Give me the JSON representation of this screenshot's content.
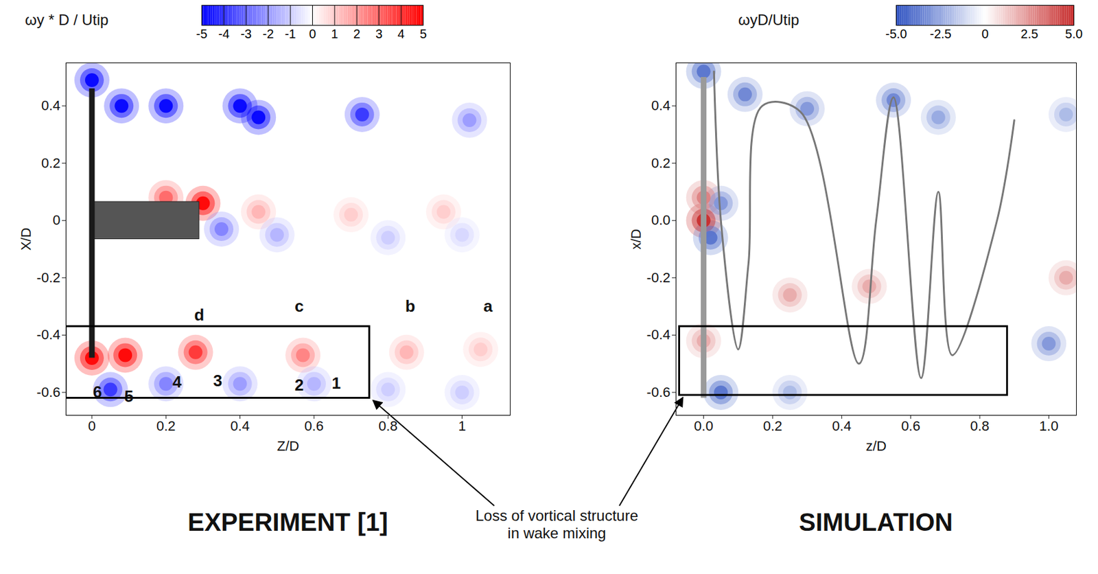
{
  "chart_data": [
    {
      "type": "vortex_map",
      "title": "EXPERIMENT [1]",
      "x_label": "Z/D",
      "y_label": "X/D",
      "xlim": [
        -0.07,
        1.13
      ],
      "ylim": [
        -0.68,
        0.55
      ],
      "xticks": [
        0,
        0.2,
        0.4,
        0.6,
        0.8,
        1
      ],
      "yticks": [
        -0.6,
        -0.4,
        -0.2,
        0,
        0.2,
        0.4
      ],
      "colorbar": {
        "label": "ωy * D / Utip",
        "range": [
          -5,
          5
        ],
        "ticks": [
          -5,
          -4,
          -3,
          -2,
          -1,
          0,
          1,
          2,
          3,
          4,
          5
        ],
        "colors": [
          "#0000ff",
          "#ffffff",
          "#ff0000"
        ]
      },
      "vortices": {
        "x": [
          0,
          0.08,
          0.2,
          0.4,
          0.45,
          0.73,
          1.02,
          0,
          0.09,
          0.28,
          0.57,
          0.85,
          1.05,
          0.05,
          0.2,
          0.4,
          0.6,
          0.8,
          1.0,
          0.3,
          0.2,
          0.45,
          0.7,
          0.95,
          0.35,
          0.5,
          0.8,
          1.0
        ],
        "y": [
          0.49,
          0.4,
          0.4,
          0.4,
          0.36,
          0.37,
          0.35,
          -0.48,
          -0.47,
          -0.46,
          -0.47,
          -0.46,
          -0.45,
          -0.59,
          -0.57,
          -0.57,
          -0.57,
          -0.59,
          -0.6,
          0.06,
          0.08,
          0.03,
          0.02,
          0.03,
          -0.03,
          -0.05,
          -0.06,
          -0.05
        ],
        "values": [
          -5,
          -5,
          -5,
          -5,
          -5,
          -4,
          -2,
          5,
          5,
          4,
          2.5,
          1.5,
          1,
          -4,
          -2.5,
          -2,
          -1.5,
          -1,
          -1,
          5,
          3,
          1.5,
          1,
          1,
          -2.5,
          -1.5,
          -1,
          -0.8
        ]
      },
      "labels": [
        {
          "text": "d",
          "x": 0.29,
          "y": -0.33
        },
        {
          "text": "c",
          "x": 0.56,
          "y": -0.3
        },
        {
          "text": "b",
          "x": 0.86,
          "y": -0.3
        },
        {
          "text": "a",
          "x": 1.07,
          "y": -0.3
        },
        {
          "text": "6",
          "x": 0.015,
          "y": -0.6
        },
        {
          "text": "5",
          "x": 0.1,
          "y": -0.615
        },
        {
          "text": "4",
          "x": 0.23,
          "y": -0.565
        },
        {
          "text": "3",
          "x": 0.34,
          "y": -0.56
        },
        {
          "text": "2",
          "x": 0.56,
          "y": -0.575
        },
        {
          "text": "1",
          "x": 0.66,
          "y": -0.57
        }
      ],
      "box": {
        "x": [
          -0.07,
          0.75
        ],
        "y": [
          -0.62,
          -0.37
        ]
      },
      "blade": {
        "x": 0,
        "y": [
          -0.48,
          0.46
        ]
      },
      "nacelle": {
        "x": [
          0,
          0.29
        ],
        "y": [
          -0.065,
          0.065
        ]
      }
    },
    {
      "type": "vortex_map",
      "title": "SIMULATION",
      "x_label": "z/D",
      "y_label": "x/D",
      "xlim": [
        -0.08,
        1.08
      ],
      "ylim": [
        -0.68,
        0.55
      ],
      "xticks": [
        {
          "value": 0,
          "label": "0.0"
        },
        0.2,
        0.4,
        0.6,
        0.8,
        {
          "value": 1,
          "label": "1.0"
        }
      ],
      "yticks": [
        -0.6,
        -0.4,
        -0.2,
        {
          "value": 0,
          "label": "0.0"
        },
        0.2,
        0.4
      ],
      "colorbar": {
        "label": "ωyD/Utip",
        "range": [
          -5,
          5
        ],
        "ticks": [
          {
            "value": -5,
            "label": "-5.0"
          },
          -2.5,
          0,
          2.5,
          {
            "value": 5,
            "label": "5.0"
          }
        ],
        "colors": [
          "#2b4fc0",
          "#ffffff",
          "#c62a2a"
        ]
      },
      "vortices": {
        "x": [
          0,
          0.12,
          0.3,
          0.55,
          0.68,
          1.05,
          0.25,
          0.48,
          1.05,
          0,
          0.05,
          0.25,
          1.0,
          0,
          0,
          0.02,
          0.05
        ],
        "y": [
          0.52,
          0.44,
          0.39,
          0.42,
          0.36,
          0.37,
          -0.26,
          -0.23,
          -0.2,
          -0.42,
          -0.6,
          -0.6,
          -0.43,
          0.08,
          0,
          -0.06,
          0.06
        ],
        "values": [
          -4,
          -3.5,
          -3,
          -3.5,
          -2.5,
          -2,
          2,
          2,
          2,
          2,
          -4,
          -2,
          -3,
          3,
          5,
          -4,
          -3
        ]
      },
      "vortex_lines": [
        {
          "x": [
            0.03,
            0.05,
            0.1,
            0.13,
            0.17,
            0.28,
            0.45,
            0.5,
            0.55,
            0.63,
            0.68,
            0.72,
            0.85,
            0.9
          ],
          "y": [
            0.52,
            0.0,
            -0.45,
            -0.15,
            0.4,
            0.38,
            -0.5,
            0.0,
            0.43,
            -0.55,
            0.1,
            -0.47,
            0.0,
            0.35
          ]
        }
      ],
      "box": {
        "x": [
          -0.07,
          0.88
        ],
        "y": [
          -0.61,
          -0.37
        ]
      },
      "blade": {
        "x": 0,
        "y": [
          -0.62,
          0.5
        ]
      }
    }
  ],
  "annotation": {
    "text": "Loss of vortical structure in wake mixing"
  }
}
